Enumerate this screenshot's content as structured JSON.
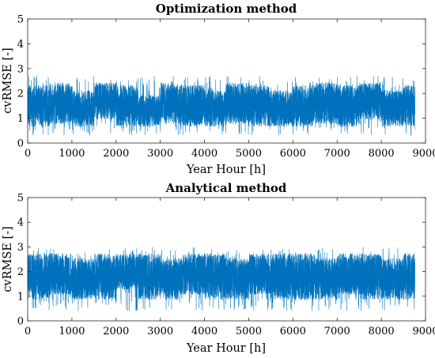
{
  "chart_data": [
    {
      "type": "line",
      "title": "Optimization method",
      "xlabel": "Year Hour [h]",
      "ylabel": "cvRMSE [-]",
      "xlim": [
        0,
        9000
      ],
      "ylim": [
        0,
        5
      ],
      "xticks": [
        "0",
        "1000",
        "2000",
        "3000",
        "4000",
        "5000",
        "6000",
        "7000",
        "8000",
        "9000"
      ],
      "yticks": [
        "0",
        "1",
        "2",
        "3",
        "4",
        "5"
      ],
      "series_color": "#0072BD",
      "grid": false,
      "series": [
        {
          "x_range": [
            1,
            8760
          ],
          "samples": 8760,
          "y_envelope": [
            0.3,
            2.7
          ],
          "y_band_dense": [
            0.7,
            2.4
          ],
          "values_every_500h": [
            1.5,
            1.6,
            1.4,
            1.7,
            1.5,
            1.3,
            1.6,
            1.5,
            1.4,
            1.6,
            1.5,
            1.4,
            1.5,
            1.6,
            1.5,
            1.7,
            1.4,
            1.5
          ]
        }
      ]
    },
    {
      "type": "line",
      "title": "Analytical method",
      "xlabel": "Year Hour [h]",
      "ylabel": "cvRMSE [-]",
      "xlim": [
        0,
        9000
      ],
      "ylim": [
        0,
        5
      ],
      "xticks": [
        "0",
        "1000",
        "2000",
        "3000",
        "4000",
        "5000",
        "6000",
        "7000",
        "8000",
        "9000"
      ],
      "yticks": [
        "0",
        "1",
        "2",
        "3",
        "4",
        "5"
      ],
      "series_color": "#0072BD",
      "grid": false,
      "series": [
        {
          "x_range": [
            1,
            8760
          ],
          "samples": 8760,
          "y_envelope": [
            0.4,
            3.0
          ],
          "y_band_dense": [
            0.9,
            2.7
          ],
          "values_every_500h": [
            1.8,
            1.9,
            1.7,
            1.8,
            2.0,
            1.8,
            1.7,
            1.9,
            1.8,
            1.7,
            1.9,
            1.8,
            1.8,
            1.7,
            1.9,
            1.8,
            1.7,
            1.8
          ]
        }
      ]
    }
  ]
}
